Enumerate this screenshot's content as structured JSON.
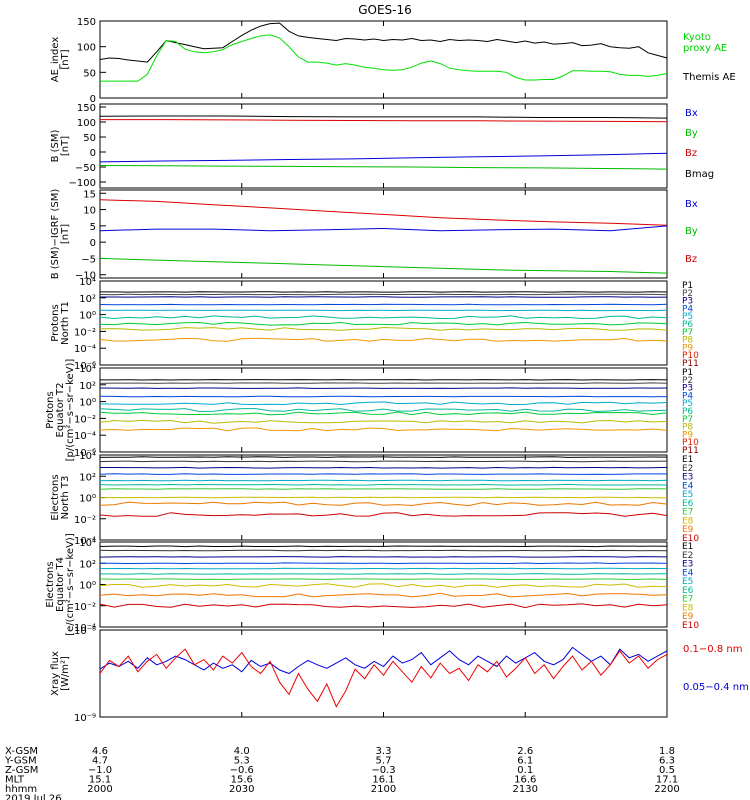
{
  "chart_data": {
    "type": "line",
    "title": "GOES-16",
    "x_ticks": [
      "2000",
      "2030",
      "2100",
      "2130",
      "2200"
    ],
    "panels": [
      {
        "id": "ae",
        "ylabel": [
          "AE_index",
          "[nT]"
        ],
        "ylim": [
          0,
          150
        ],
        "yscale": "linear",
        "yticks": [
          0,
          50,
          100,
          150
        ],
        "ytick_labels": [
          "0",
          "50",
          "100",
          "150"
        ],
        "legend": [
          {
            "label": "Kyoto",
            "color": "#00d000"
          },
          {
            "label": "proxy AE",
            "color": "#00d000"
          },
          {
            "label": "Themis AE",
            "color": "#000000"
          }
        ],
        "series": [
          {
            "name": "Themis AE",
            "color": "#000000",
            "values": [
              75,
              78,
              77,
              74,
              72,
              70,
              90,
              112,
              108,
              104,
              100,
              96,
              97,
              98,
              110,
              122,
              132,
              140,
              145,
              146,
              130,
              121,
              118,
              116,
              114,
              112,
              116,
              115,
              113,
              115,
              112,
              114,
              113,
              116,
              112,
              113,
              110,
              114,
              112,
              113,
              112,
              110,
              114,
              111,
              108,
              111,
              107,
              109,
              105,
              106,
              108,
              102,
              103,
              106,
              100,
              98,
              97,
              100,
              88,
              83,
              78
            ]
          },
          {
            "name": "Kyoto proxy AE",
            "color": "#00e000",
            "values": [
              33,
              33,
              33,
              33,
              33,
              46,
              82,
              112,
              110,
              95,
              90,
              88,
              90,
              94,
              104,
              110,
              116,
              121,
              123,
              117,
              100,
              80,
              70,
              70,
              68,
              64,
              67,
              64,
              60,
              58,
              55,
              54,
              55,
              60,
              68,
              72,
              67,
              58,
              55,
              53,
              52,
              52,
              52,
              50,
              40,
              35,
              35,
              36,
              36,
              43,
              53,
              53,
              52,
              52,
              51,
              46,
              44,
              44,
              42,
              44,
              48
            ]
          }
        ]
      },
      {
        "id": "b_sm",
        "ylabel": [
          "B (SM)",
          "[nT]"
        ],
        "ylim": [
          -120,
          160
        ],
        "yscale": "linear",
        "yticks": [
          -100,
          -50,
          0,
          50,
          100,
          150
        ],
        "ytick_labels": [
          "−100",
          "−50",
          "0",
          "50",
          "100",
          "150"
        ],
        "legend": [
          {
            "label": "Bx",
            "color": "#0000cc"
          },
          {
            "label": "By",
            "color": "#00bb00"
          },
          {
            "label": "Bz",
            "color": "#cc0000"
          },
          {
            "label": "Bmag",
            "color": "#000000"
          }
        ],
        "series": [
          {
            "name": "Bmag",
            "color": "#000000",
            "values": [
              119,
              120,
              120,
              118,
              117,
              117,
              117,
              115,
              115,
              113
            ]
          },
          {
            "name": "Bz",
            "color": "#dd0000",
            "values": [
              108,
              108,
              107,
              106,
              105,
              104,
              104,
              103,
              102,
              101
            ]
          },
          {
            "name": "Bx",
            "color": "#0000dd",
            "values": [
              -33,
              -30,
              -28,
              -25,
              -23,
              -19,
              -16,
              -13,
              -9,
              -4
            ]
          },
          {
            "name": "By",
            "color": "#00bb00",
            "values": [
              -45,
              -46,
              -47,
              -48,
              -49,
              -50,
              -52,
              -53,
              -55,
              -57
            ]
          }
        ]
      },
      {
        "id": "b_igrf",
        "ylabel": [
          "B (SM)−IGRF (SM)",
          "[nT]"
        ],
        "ylim": [
          -11,
          16
        ],
        "yscale": "linear",
        "yticks": [
          -10,
          -5,
          0,
          5,
          10,
          15
        ],
        "ytick_labels": [
          "−10",
          "−5",
          "0",
          "5",
          "10",
          "15"
        ],
        "legend": [
          {
            "label": "Bx",
            "color": "#0000cc"
          },
          {
            "label": "By",
            "color": "#00bb00"
          },
          {
            "label": "Bz",
            "color": "#cc0000"
          }
        ],
        "series": [
          {
            "name": "Bz",
            "color": "#dd0000",
            "values": [
              13,
              12.5,
              11.5,
              10.5,
              9.5,
              8.5,
              7.5,
              6.8,
              6.2,
              5.8,
              5.2
            ]
          },
          {
            "name": "Bx",
            "color": "#0000dd",
            "values": [
              3.5,
              4,
              4,
              3.5,
              3.8,
              4.2,
              3.5,
              3.8,
              4,
              3.5,
              5
            ]
          },
          {
            "name": "By",
            "color": "#00bb00",
            "values": [
              -5,
              -5.5,
              -6,
              -6.5,
              -7,
              -7.5,
              -8,
              -8.5,
              -8.8,
              -9,
              -9.5
            ]
          }
        ]
      },
      {
        "id": "protons_t1",
        "ylabel": [
          "Protons",
          "North T1"
        ],
        "ylim": [
          -6,
          4
        ],
        "yscale": "log",
        "yticks": [
          -6,
          -4,
          -2,
          0,
          2,
          4
        ],
        "ytick_labels": [
          "10⁻⁶",
          "10⁻⁴",
          "10⁻²",
          "10⁰",
          "10²",
          "10⁴"
        ],
        "legend_channels": [
          {
            "label": "P1",
            "color": "#000000",
            "level": 2.7
          },
          {
            "label": "P2",
            "color": "#444444",
            "level": 2.4
          },
          {
            "label": "P3",
            "color": "#000088",
            "level": 2.1
          },
          {
            "label": "P4",
            "color": "#0044dd",
            "level": 1.2
          },
          {
            "label": "P5",
            "color": "#00aacc",
            "level": 0.5
          },
          {
            "label": "P6",
            "color": "#00bb99",
            "level": -0.3
          },
          {
            "label": "P7",
            "color": "#00cc33",
            "level": -1.1
          },
          {
            "label": "P8",
            "color": "#bbbb00",
            "level": -1.7
          },
          {
            "label": "P9",
            "color": "#ee9900",
            "level": -3.0
          },
          {
            "label": "P10",
            "color": "#dd2200",
            "level": null
          },
          {
            "label": "P11",
            "color": "#880000",
            "level": null
          }
        ]
      },
      {
        "id": "protons_t2",
        "ylabel": [
          "Protons",
          "Equator T2",
          "[p/(cm²−s−sr−keV)]"
        ],
        "ylim": [
          -6,
          4
        ],
        "yscale": "log",
        "yticks": [
          -6,
          -4,
          -2,
          0,
          2,
          4
        ],
        "ytick_labels": [
          "10⁻⁶",
          "10⁻⁴",
          "10⁻²",
          "10⁰",
          "10²",
          "10⁴"
        ],
        "legend_channels": [
          {
            "label": "P1",
            "color": "#000000",
            "level": 2.6
          },
          {
            "label": "P2",
            "color": "#444444",
            "level": 2.2
          },
          {
            "label": "P3",
            "color": "#000088",
            "level": 1.6
          },
          {
            "label": "P4",
            "color": "#0044dd",
            "level": 0.6
          },
          {
            "label": "P5",
            "color": "#00aacc",
            "level": -0.2
          },
          {
            "label": "P6",
            "color": "#00bb99",
            "level": -1.0
          },
          {
            "label": "P7",
            "color": "#00cc33",
            "level": -1.4
          },
          {
            "label": "P8",
            "color": "#bbbb00",
            "level": -2.4
          },
          {
            "label": "P9",
            "color": "#ee9900",
            "level": -3.3
          },
          {
            "label": "P10",
            "color": "#dd2200",
            "level": null
          },
          {
            "label": "P11",
            "color": "#880000",
            "level": null
          }
        ]
      },
      {
        "id": "electrons_t3",
        "ylabel": [
          "Electrons",
          "North T3"
        ],
        "ylim": [
          -4,
          4
        ],
        "yscale": "log",
        "yticks": [
          -4,
          -2,
          0,
          2,
          4
        ],
        "ytick_labels": [
          "10⁻⁴",
          "10⁻²",
          "10⁰",
          "10²",
          "10⁴"
        ],
        "legend_channels": [
          {
            "label": "E1",
            "color": "#000000",
            "level": 3.8
          },
          {
            "label": "E2",
            "color": "#333333",
            "level": 3.4
          },
          {
            "label": "E3",
            "color": "#000088",
            "level": 2.8
          },
          {
            "label": "E4",
            "color": "#0044dd",
            "level": 2.2
          },
          {
            "label": "E5",
            "color": "#00aacc",
            "level": 1.6
          },
          {
            "label": "E6",
            "color": "#00bb99",
            "level": 1.2
          },
          {
            "label": "E7",
            "color": "#33cc33",
            "level": 0.8
          },
          {
            "label": "E8",
            "color": "#ccbb00",
            "level": 0.0
          },
          {
            "label": "E9",
            "color": "#ee7700",
            "level": -0.6
          },
          {
            "label": "E10",
            "color": "#cc0000",
            "level": -1.6
          }
        ]
      },
      {
        "id": "electrons_t4",
        "ylabel": [
          "Electrons",
          "Equator T4",
          "[e/(cm²−s−sr−keV)]"
        ],
        "ylim": [
          -4,
          4
        ],
        "yscale": "log",
        "yticks": [
          -4,
          -2,
          0,
          2,
          4
        ],
        "ytick_labels": [
          "10⁻⁴",
          "10⁻²",
          "10⁰",
          "10²",
          "10⁴"
        ],
        "legend_channels": [
          {
            "label": "E1",
            "color": "#000000",
            "level": 3.6
          },
          {
            "label": "E2",
            "color": "#333333",
            "level": 3.2
          },
          {
            "label": "E3",
            "color": "#000088",
            "level": 2.6
          },
          {
            "label": "E4",
            "color": "#0044dd",
            "level": 2.0
          },
          {
            "label": "E5",
            "color": "#00aacc",
            "level": 1.5
          },
          {
            "label": "E6",
            "color": "#00bb99",
            "level": 1.0
          },
          {
            "label": "E7",
            "color": "#33cc33",
            "level": 0.5
          },
          {
            "label": "E8",
            "color": "#ccbb00",
            "level": -0.1
          },
          {
            "label": "E9",
            "color": "#ee7700",
            "level": -1.0
          },
          {
            "label": "E10",
            "color": "#cc0000",
            "level": -2.0
          }
        ]
      },
      {
        "id": "xray",
        "ylabel": [
          "Xray flux",
          "[W/m²]"
        ],
        "ylim": [
          -9,
          -8
        ],
        "yscale": "log",
        "yticks": [
          -9,
          -8
        ],
        "ytick_labels": [
          "10⁻⁹",
          "10⁻⁸"
        ],
        "legend": [
          {
            "label": "0.1−0.8 nm",
            "color": "#dd0000"
          },
          {
            "label": "0.05−0.4 nm",
            "color": "#0000cc"
          }
        ],
        "series": [
          {
            "name": "0.05−0.4 nm",
            "color": "#0000dd",
            "values": [
              -8.45,
              -8.38,
              -8.42,
              -8.36,
              -8.44,
              -8.32,
              -8.4,
              -8.36,
              -8.3,
              -8.34,
              -8.4,
              -8.46,
              -8.38,
              -8.44,
              -8.4,
              -8.48,
              -8.35,
              -8.42,
              -8.38,
              -8.46,
              -8.5,
              -8.42,
              -8.35,
              -8.4,
              -8.44,
              -8.38,
              -8.32,
              -8.4,
              -8.44,
              -8.36,
              -8.42,
              -8.3,
              -8.38,
              -8.34,
              -8.26,
              -8.4,
              -8.32,
              -8.24,
              -8.34,
              -8.4,
              -8.3,
              -8.36,
              -8.42,
              -8.3,
              -8.38,
              -8.32,
              -8.26,
              -8.36,
              -8.4,
              -8.34,
              -8.2,
              -8.28,
              -8.36,
              -8.3,
              -8.4,
              -8.22,
              -8.32,
              -8.28,
              -8.36,
              -8.3,
              -8.24
            ]
          },
          {
            "name": "0.1−0.8 nm",
            "color": "#ee0000",
            "values": [
              -8.5,
              -8.35,
              -8.42,
              -8.3,
              -8.48,
              -8.36,
              -8.28,
              -8.44,
              -8.32,
              -8.22,
              -8.4,
              -8.34,
              -8.46,
              -8.3,
              -8.38,
              -8.26,
              -8.42,
              -8.5,
              -8.36,
              -8.6,
              -8.74,
              -8.5,
              -8.68,
              -8.82,
              -8.62,
              -8.88,
              -8.7,
              -8.45,
              -8.56,
              -8.4,
              -8.52,
              -8.36,
              -8.48,
              -8.6,
              -8.42,
              -8.55,
              -8.38,
              -8.5,
              -8.44,
              -8.58,
              -8.4,
              -8.48,
              -8.36,
              -8.54,
              -8.44,
              -8.32,
              -8.5,
              -8.4,
              -8.56,
              -8.42,
              -8.3,
              -8.46,
              -8.36,
              -8.52,
              -8.4,
              -8.24,
              -8.38,
              -8.3,
              -8.44,
              -8.34,
              -8.28
            ]
          }
        ]
      }
    ],
    "ephemeris": {
      "rows": [
        {
          "label": "X-GSM",
          "values": [
            "4.6",
            "4.0",
            "3.3",
            "2.6",
            "1.8"
          ]
        },
        {
          "label": "Y-GSM",
          "values": [
            "4.7",
            "5.3",
            "5.7",
            "6.1",
            "6.3"
          ]
        },
        {
          "label": "Z-GSM",
          "values": [
            "−1.0",
            "−0.6",
            "−0.3",
            "0.1",
            "0.5"
          ]
        },
        {
          "label": "MLT",
          "values": [
            "15.1",
            "15.6",
            "16.1",
            "16.6",
            "17.1"
          ]
        },
        {
          "label": "hhmm",
          "values": [
            "2000",
            "2030",
            "2100",
            "2130",
            "2200"
          ]
        }
      ],
      "date": "2019 Jul 26"
    }
  }
}
